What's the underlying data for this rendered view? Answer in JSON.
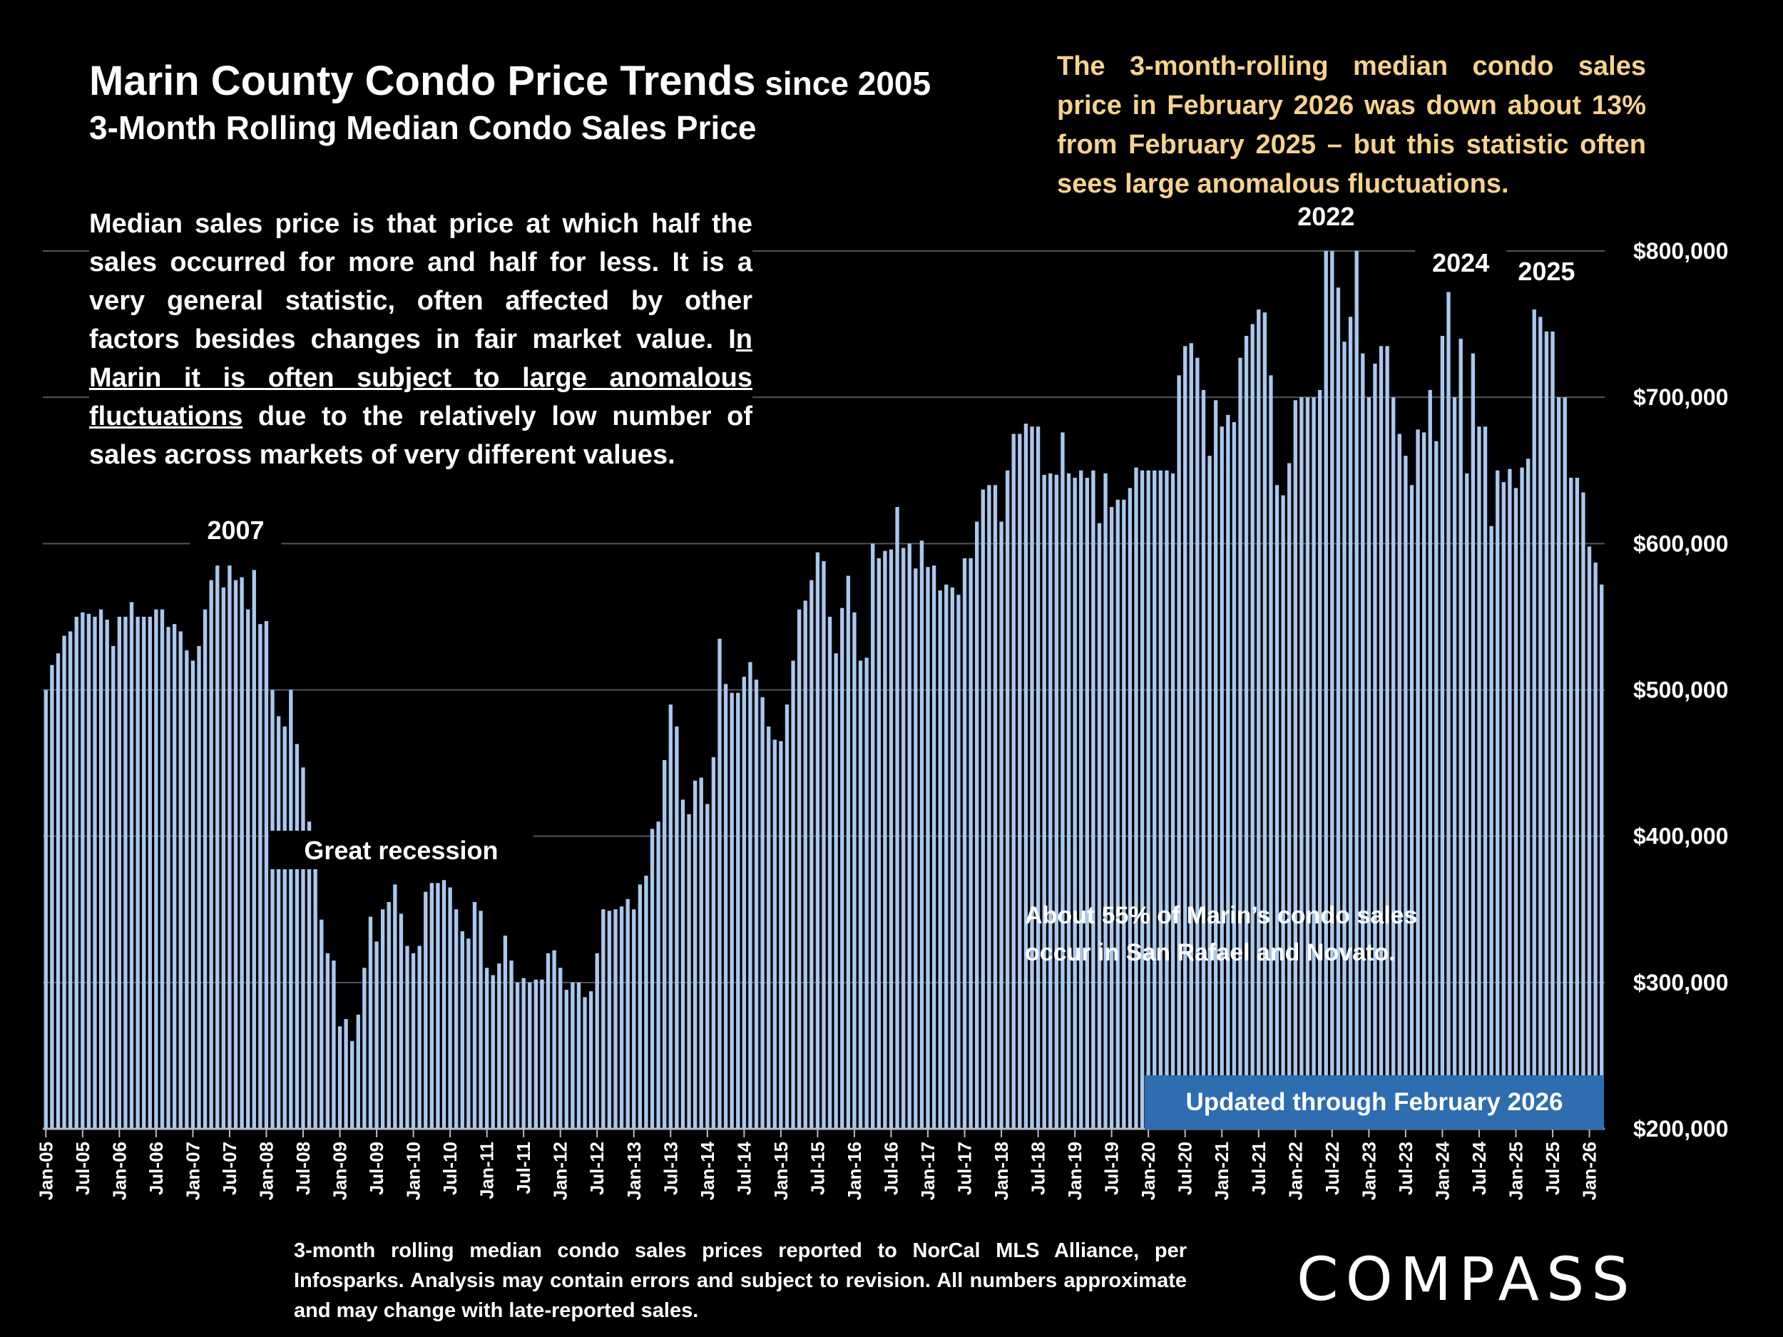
{
  "header": {
    "title_main": "Marin County Condo Price Trends",
    "title_since": " since 2005",
    "subtitle": "3-Month Rolling Median Condo Sales Price"
  },
  "callout": "The 3-month-rolling median condo sales price in February 2026 was down about 13% from February 2025 – but this statistic often sees large anomalous fluctuations.",
  "description": {
    "part1": "Median sales price is that price at which half the sales occurred for more and half for less. It is a very general statistic, often affected by other factors besides changes in fair market value. I",
    "part2_underlined": "n Marin it is often subject to large anomalous fluctuations",
    "part3": " due to the relatively low number of sales across markets of very different values."
  },
  "note": {
    "line1": "About 55% of Marin’s condo sales",
    "line2": "occur in San Rafael and Novato."
  },
  "updated_badge": "Updated through February 2026",
  "footnote": "3-month rolling median condo sales prices reported to NorCal MLS Alliance, per Infosparks. Analysis may contain errors and subject to revision. All numbers approximate and may change with late-reported sales.",
  "logo": "COMPASS",
  "colors": {
    "bar": "#a9c8ee",
    "gridline": "#555555",
    "callout": "#f7d28c",
    "badge": "#2d6db0"
  },
  "chart_data": {
    "type": "bar",
    "title": "Marin County Condo Price Trends since 2005",
    "subtitle": "3-Month Rolling Median Condo Sales Price",
    "start": "Jan-05",
    "end": "Feb-26",
    "ylim": [
      200000,
      800000
    ],
    "y_ticks": [
      "$200,000",
      "$300,000",
      "$400,000",
      "$500,000",
      "$600,000",
      "$700,000",
      "$800,000"
    ],
    "x_tick_labels": [
      "Jan-05",
      "Jul-05",
      "Jan-06",
      "Jul-06",
      "Jan-07",
      "Jul-07",
      "Jan-08",
      "Jul-08",
      "Jan-09",
      "Jul-09",
      "Jan-10",
      "Jul-10",
      "Jan-11",
      "Jul-11",
      "Jan-12",
      "Jul-12",
      "Jan-13",
      "Jul-13",
      "Jan-14",
      "Jul-14",
      "Jan-15",
      "Jul-15",
      "Jan-16",
      "Jul-16",
      "Jan-17",
      "Jul-17",
      "Jan-18",
      "Jul-18",
      "Jan-19",
      "Jul-19",
      "Jan-20",
      "Jul-20",
      "Jan-21",
      "Jul-21",
      "Jan-22",
      "Jul-22",
      "Jan-23",
      "Jul-23",
      "Jan-24",
      "Jul-24",
      "Jan-25",
      "Jul-25",
      "Jan-26"
    ],
    "annotations": [
      {
        "label": "2007",
        "index": 31
      },
      {
        "label": "Great recession",
        "index": 58
      },
      {
        "label": "2022",
        "index": 209
      },
      {
        "label": "2024",
        "index": 231
      },
      {
        "label": "2025",
        "index": 245
      }
    ],
    "values": [
      500000,
      517000,
      525000,
      537000,
      540000,
      550000,
      553000,
      552000,
      550000,
      555000,
      548000,
      530000,
      550000,
      550000,
      560000,
      550000,
      550000,
      550000,
      555000,
      555000,
      543000,
      545000,
      540000,
      527000,
      520000,
      530000,
      555000,
      575000,
      585000,
      570000,
      585000,
      575000,
      577000,
      555000,
      582000,
      545000,
      547000,
      500000,
      482000,
      475000,
      500000,
      463000,
      447000,
      410000,
      385000,
      343000,
      320000,
      315000,
      270000,
      275000,
      260000,
      278000,
      310000,
      345000,
      328000,
      350000,
      355000,
      367000,
      347000,
      325000,
      320000,
      325000,
      362000,
      368000,
      368000,
      370000,
      365000,
      350000,
      335000,
      330000,
      355000,
      349000,
      310000,
      305000,
      313000,
      332000,
      315000,
      300000,
      303000,
      300000,
      302000,
      302000,
      320000,
      322000,
      310000,
      295000,
      300000,
      300000,
      290000,
      294000,
      320000,
      350000,
      349000,
      350000,
      352000,
      357000,
      350000,
      367000,
      373000,
      405000,
      410000,
      452000,
      490000,
      475000,
      425000,
      415000,
      438000,
      440000,
      422000,
      454000,
      535000,
      504000,
      498000,
      498000,
      509000,
      519000,
      507000,
      495000,
      475000,
      466000,
      465000,
      490000,
      520000,
      555000,
      561000,
      575000,
      594000,
      588000,
      550000,
      525000,
      556000,
      578000,
      553000,
      520000,
      522000,
      600000,
      590000,
      595000,
      596000,
      625000,
      597000,
      600000,
      583000,
      602000,
      584000,
      585000,
      568000,
      572000,
      570000,
      565000,
      590000,
      590000,
      615000,
      637000,
      640000,
      640000,
      615000,
      650000,
      675000,
      675000,
      682000,
      680000,
      680000,
      647000,
      648000,
      647000,
      676000,
      648000,
      645000,
      650000,
      645000,
      650000,
      614000,
      648000,
      625000,
      630000,
      630000,
      638000,
      652000,
      650000,
      650000,
      650000,
      650000,
      650000,
      648000,
      715000,
      735000,
      737000,
      727000,
      705000,
      660000,
      698000,
      680000,
      688000,
      683000,
      727000,
      742000,
      750000,
      760000,
      758000,
      715000,
      640000,
      633000,
      655000,
      698000,
      700000,
      700000,
      700000,
      705000,
      800000,
      800000,
      775000,
      738000,
      755000,
      800000,
      730000,
      700000,
      723000,
      735000,
      735000,
      700000,
      675000,
      660000,
      640000,
      678000,
      676000,
      705000,
      670000,
      742000,
      772000,
      700000,
      740000,
      648000,
      730000,
      680000,
      680000,
      612000,
      650000,
      642000,
      651000,
      638000,
      652000,
      658000,
      760000,
      755000,
      745000,
      745000,
      700000,
      700000,
      645000,
      645000,
      635000,
      598000,
      587000,
      572000
    ]
  }
}
